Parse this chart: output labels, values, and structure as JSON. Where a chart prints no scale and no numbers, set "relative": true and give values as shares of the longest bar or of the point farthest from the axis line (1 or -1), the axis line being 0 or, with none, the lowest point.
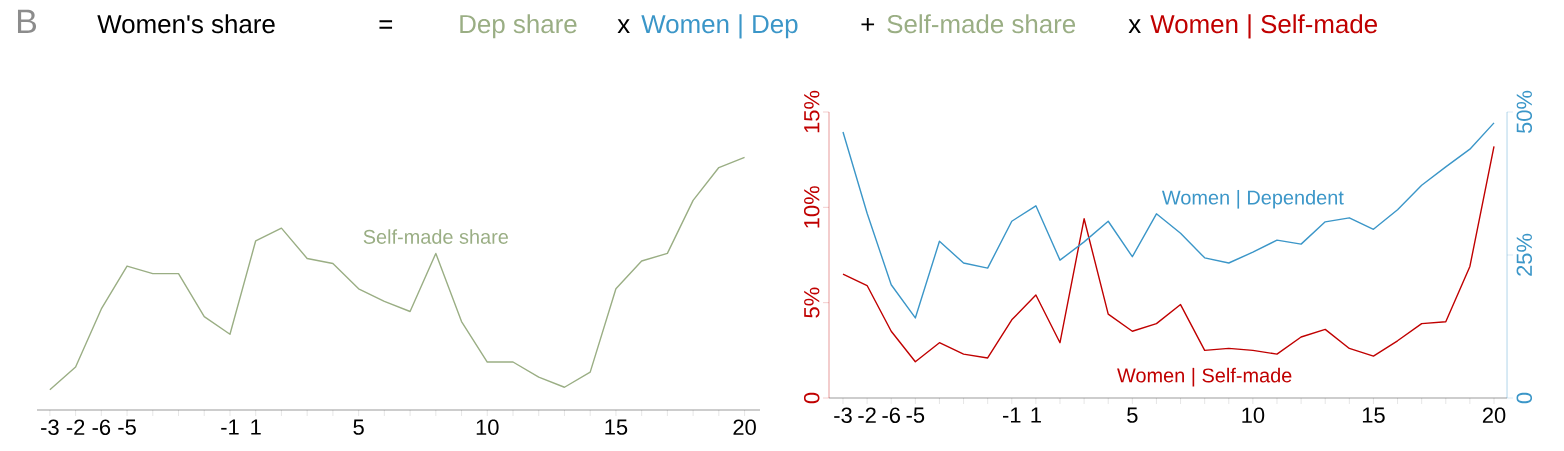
{
  "chart_data": [
    {
      "type": "line",
      "relative": true,
      "annotations": [
        "B",
        "Women's share",
        "=",
        "Dep share",
        "x",
        "Women | Dep",
        "+",
        "Self-made share",
        "x",
        "Women | Self-made"
      ],
      "categories": [
        "-3",
        "-2",
        "-6",
        "-5",
        null,
        null,
        null,
        "-1",
        "1",
        null,
        null,
        null,
        "5",
        null,
        null,
        null,
        null,
        "10",
        null,
        null,
        null,
        null,
        "15",
        null,
        null,
        null,
        null,
        "20"
      ],
      "series": [
        {
          "name": "Self-made share",
          "color": "#9aae84",
          "values": [
            0.08,
            0.17,
            0.4,
            0.57,
            0.54,
            0.54,
            0.37,
            0.3,
            0.67,
            0.72,
            0.6,
            0.58,
            0.48,
            0.43,
            0.39,
            0.62,
            0.35,
            0.19,
            0.19,
            0.13,
            0.09,
            0.15,
            0.48,
            0.59,
            0.62,
            0.83,
            0.96,
            1
          ]
        }
      ]
    },
    {
      "type": "line",
      "categories": [
        "-3",
        "-2",
        "-6",
        "-5",
        null,
        null,
        null,
        "-1",
        "1",
        null,
        null,
        null,
        "5",
        null,
        null,
        null,
        null,
        "10",
        null,
        null,
        null,
        null,
        "15",
        null,
        null,
        null,
        null,
        "20"
      ],
      "ylim": [
        0,
        15
      ],
      "yticks": [
        0,
        {
          "value": 5,
          "label": "5%"
        },
        {
          "value": 10,
          "label": "10%"
        },
        {
          "value": 15,
          "label": "15%"
        }
      ],
      "y2lim": [
        0,
        50
      ],
      "y2ticks": [
        0,
        {
          "value": 25,
          "label": "25%"
        },
        {
          "value": 50,
          "label": "50%"
        }
      ],
      "series": [
        {
          "name": "Women | Self-made",
          "color": "#c00000",
          "axis": "y",
          "values": [
            6.5,
            5.9,
            3.5,
            1.9,
            2.9,
            2.3,
            2.1,
            4.1,
            5.4,
            2.9,
            9.4,
            4.4,
            3.5,
            3.9,
            4.9,
            2.5,
            2.6,
            2.5,
            2.3,
            3.2,
            3.6,
            2.6,
            2.2,
            3.0,
            3.9,
            4.0,
            6.9,
            13.2
          ]
        },
        {
          "name": "Women | Dependent",
          "color": "#3b96c8",
          "axis": "y2",
          "values": [
            46.5,
            32.3,
            19.8,
            14.0,
            27.4,
            23.6,
            22.7,
            30.9,
            33.6,
            24.1,
            27.3,
            30.9,
            24.7,
            32.2,
            28.8,
            24.5,
            23.6,
            25.5,
            27.6,
            26.9,
            30.8,
            31.5,
            29.5,
            32.9,
            37.2,
            40.4,
            43.5,
            48.1
          ]
        }
      ]
    }
  ]
}
